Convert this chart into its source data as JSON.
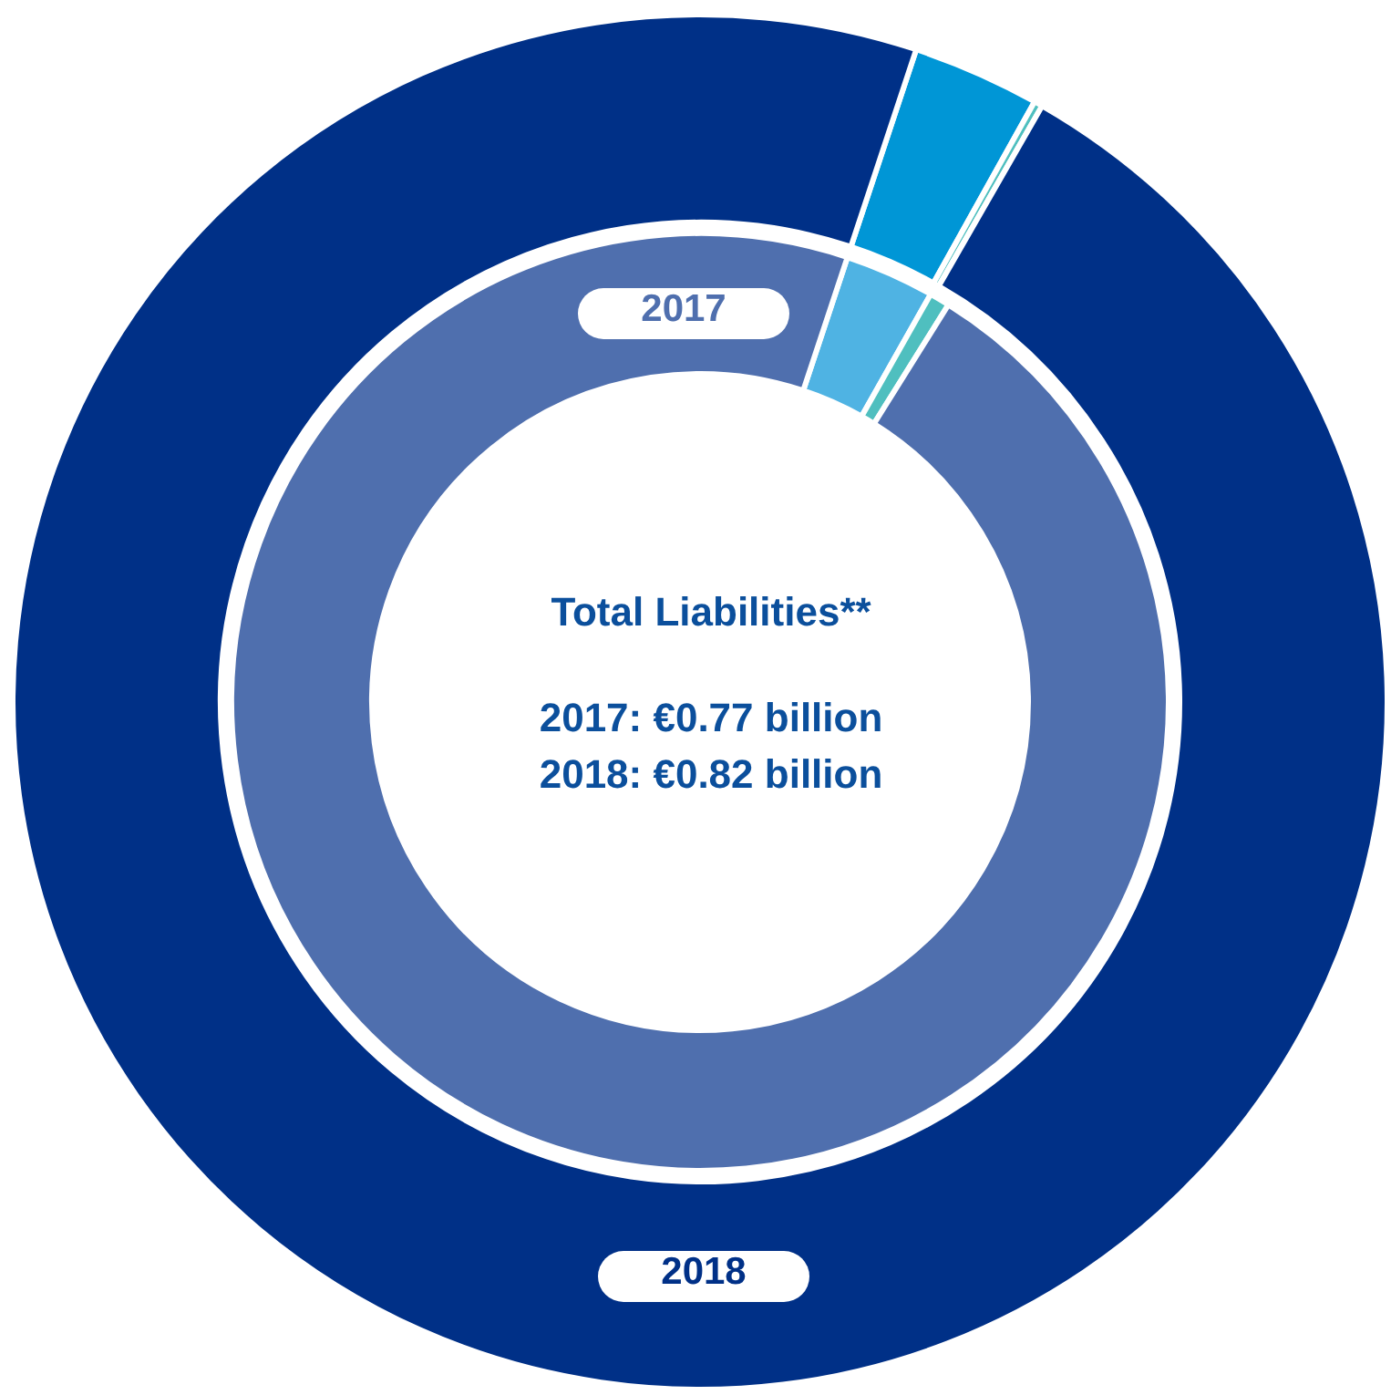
{
  "chart_data": [
    {
      "type": "donut",
      "title": "Total Liabilities**",
      "annotations": [
        "2017: €0.77 billion",
        "2018: €0.82 billion"
      ],
      "categories": [
        null,
        null,
        null
      ],
      "series": [
        {
          "name": "2018",
          "values": [
            3.0,
            0.2,
            96.8
          ],
          "colors": [
            "#0096d6",
            "#4fbfbf",
            "#003087"
          ]
        }
      ]
    },
    {
      "type": "donut",
      "categories": [
        null,
        null,
        null
      ],
      "series": [
        {
          "name": "2017",
          "values": [
            3.1,
            0.7,
            96.2
          ],
          "colors": [
            "#4fb3e3",
            "#4fbfbf",
            "#4f6fae"
          ]
        }
      ]
    }
  ]
}
